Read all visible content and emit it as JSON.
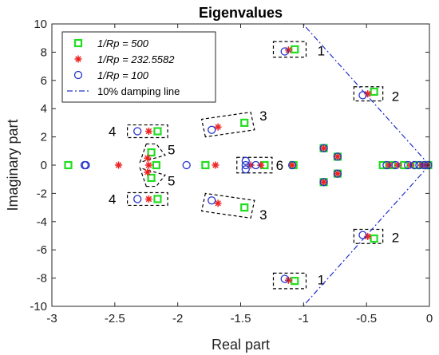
{
  "chart_data": {
    "type": "scatter",
    "title": "Eigenvalues",
    "xlabel": "Real part",
    "ylabel": "Imaginary part",
    "xlim": [
      -3,
      0
    ],
    "ylim": [
      -10,
      10
    ],
    "xticks": [
      -3,
      -2.5,
      -2,
      -1.5,
      -1,
      -0.5,
      0
    ],
    "xtick_labels": [
      "-3",
      "-2.5",
      "-2",
      "-1.5",
      "-1",
      "-0.5",
      "0"
    ],
    "yticks": [
      -10,
      -8,
      -6,
      -4,
      -2,
      0,
      2,
      4,
      6,
      8,
      10
    ],
    "ytick_labels": [
      "-10",
      "-8",
      "-6",
      "-4",
      "-2",
      "0",
      "2",
      "4",
      "6",
      "8",
      "10"
    ],
    "grid": false,
    "legend_position": "top-left",
    "series": [
      {
        "name": "1/Rp = 500",
        "marker": "square",
        "color": "#22dd22",
        "points": [
          [
            -1.07,
            8.2
          ],
          [
            -1.07,
            -8.2
          ],
          [
            -0.44,
            5.2
          ],
          [
            -0.44,
            -5.2
          ],
          [
            -1.47,
            3.0
          ],
          [
            -1.47,
            -3.0
          ],
          [
            -2.16,
            2.4
          ],
          [
            -2.16,
            -2.4
          ],
          [
            -2.21,
            0.9
          ],
          [
            -2.21,
            -0.9
          ],
          [
            -2.87,
            0.0
          ],
          [
            -2.17,
            0.0
          ],
          [
            -1.78,
            0.0
          ],
          [
            -1.31,
            0.0
          ],
          [
            -1.08,
            0.0
          ],
          [
            -0.37,
            0.0
          ],
          [
            -0.3,
            0.0
          ],
          [
            -0.2,
            0.0
          ],
          [
            -0.1,
            0.0
          ],
          [
            -0.03,
            0.0
          ],
          [
            -0.01,
            0.0
          ],
          [
            -0.84,
            1.2
          ],
          [
            -0.84,
            -1.2
          ],
          [
            -0.73,
            0.6
          ],
          [
            -0.73,
            -0.6
          ]
        ]
      },
      {
        "name": "1/Rp = 232.5582",
        "marker": "asterisk",
        "color": "#ee2222",
        "points": [
          [
            -1.12,
            8.15
          ],
          [
            -1.12,
            -8.15
          ],
          [
            -0.49,
            5.05
          ],
          [
            -0.49,
            -5.05
          ],
          [
            -1.68,
            2.7
          ],
          [
            -1.68,
            -2.7
          ],
          [
            -2.23,
            2.4
          ],
          [
            -2.23,
            -2.4
          ],
          [
            -2.24,
            0.5
          ],
          [
            -2.24,
            -0.5
          ],
          [
            -2.47,
            0.0
          ],
          [
            -2.23,
            0.0
          ],
          [
            -1.7,
            0.0
          ],
          [
            -1.42,
            0.0
          ],
          [
            -1.34,
            0.0
          ],
          [
            -1.09,
            0.0
          ],
          [
            -0.32,
            0.0
          ],
          [
            -0.25,
            0.0
          ],
          [
            -0.15,
            0.0
          ],
          [
            -0.06,
            0.0
          ],
          [
            -0.02,
            0.0
          ],
          [
            -0.84,
            1.2
          ],
          [
            -0.84,
            -1.2
          ],
          [
            -0.73,
            0.6
          ],
          [
            -0.73,
            -0.6
          ]
        ]
      },
      {
        "name": "1/Rp = 100",
        "marker": "circle",
        "color": "#2233cc",
        "points": [
          [
            -1.15,
            8.05
          ],
          [
            -1.15,
            -8.05
          ],
          [
            -0.53,
            4.95
          ],
          [
            -0.53,
            -4.95
          ],
          [
            -1.73,
            2.5
          ],
          [
            -1.73,
            -2.5
          ],
          [
            -2.32,
            2.4
          ],
          [
            -2.32,
            -2.4
          ],
          [
            -2.73,
            0.0
          ],
          [
            -2.74,
            0.0
          ],
          [
            -1.93,
            0.0
          ],
          [
            -1.46,
            0.0
          ],
          [
            -1.46,
            0.3
          ],
          [
            -1.46,
            -0.3
          ],
          [
            -1.38,
            0.0
          ],
          [
            -1.09,
            0.0
          ],
          [
            -0.34,
            0.0
          ],
          [
            -0.27,
            0.0
          ],
          [
            -0.17,
            0.0
          ],
          [
            -0.12,
            0.0
          ],
          [
            -0.08,
            0.0
          ],
          [
            -0.04,
            0.0
          ],
          [
            -0.01,
            0.0
          ],
          [
            -0.84,
            1.2
          ],
          [
            -0.84,
            -1.2
          ],
          [
            -0.73,
            0.6
          ],
          [
            -0.73,
            -0.6
          ]
        ]
      }
    ],
    "damping_line": {
      "name": "10% damping line",
      "color": "#2233cc",
      "style": "dash-dot",
      "points_upper": [
        [
          0,
          0
        ],
        [
          -1.005,
          10
        ]
      ],
      "points_lower": [
        [
          0,
          0
        ],
        [
          -1.005,
          -10
        ]
      ]
    },
    "annotation_boxes": [
      {
        "label": "1",
        "box": [
          -1.24,
          7.65,
          -0.98,
          8.75
        ],
        "label_at": [
          -0.86,
          8.1
        ]
      },
      {
        "label": "1",
        "box": [
          -1.24,
          -8.75,
          -0.98,
          -7.65
        ],
        "label_at": [
          -0.86,
          -8.1
        ]
      },
      {
        "label": "2",
        "box": [
          -0.6,
          4.55,
          -0.37,
          5.55
        ],
        "label_at": [
          -0.27,
          4.9
        ]
      },
      {
        "label": "2",
        "box": [
          -0.6,
          -5.55,
          -0.37,
          -4.55
        ],
        "label_at": [
          -0.27,
          -5.1
        ]
      },
      {
        "label": "4",
        "box": [
          -2.4,
          1.95,
          -2.08,
          2.85
        ],
        "label_at": [
          -2.52,
          2.4
        ]
      },
      {
        "label": "4",
        "box": [
          -2.4,
          -2.85,
          -2.08,
          -1.95
        ],
        "label_at": [
          -2.52,
          -2.4
        ]
      },
      {
        "label": "6",
        "box": [
          -1.53,
          -0.55,
          -1.25,
          0.55
        ],
        "label_at": [
          -1.19,
          0.0
        ]
      }
    ],
    "annotation_polygons": [
      {
        "label": "3",
        "points": [
          [
            -1.78,
            2.0
          ],
          [
            -1.81,
            3.25
          ],
          [
            -1.42,
            3.75
          ],
          [
            -1.39,
            2.5
          ]
        ],
        "label_at": [
          -1.32,
          3.5
        ]
      },
      {
        "label": "3",
        "points": [
          [
            -1.78,
            -2.0
          ],
          [
            -1.81,
            -3.25
          ],
          [
            -1.42,
            -3.75
          ],
          [
            -1.39,
            -2.5
          ]
        ],
        "label_at": [
          -1.32,
          -3.5
        ]
      },
      {
        "label": "5",
        "points": [
          [
            -2.25,
            1.5
          ],
          [
            -2.17,
            1.5
          ],
          [
            -2.1,
            0.7
          ],
          [
            -2.3,
            0.2
          ]
        ],
        "label_at": [
          -2.05,
          1.1
        ]
      },
      {
        "label": "5",
        "points": [
          [
            -2.25,
            -1.5
          ],
          [
            -2.17,
            -1.5
          ],
          [
            -2.1,
            -0.7
          ],
          [
            -2.3,
            -0.2
          ]
        ],
        "label_at": [
          -2.05,
          -1.1
        ]
      }
    ]
  }
}
